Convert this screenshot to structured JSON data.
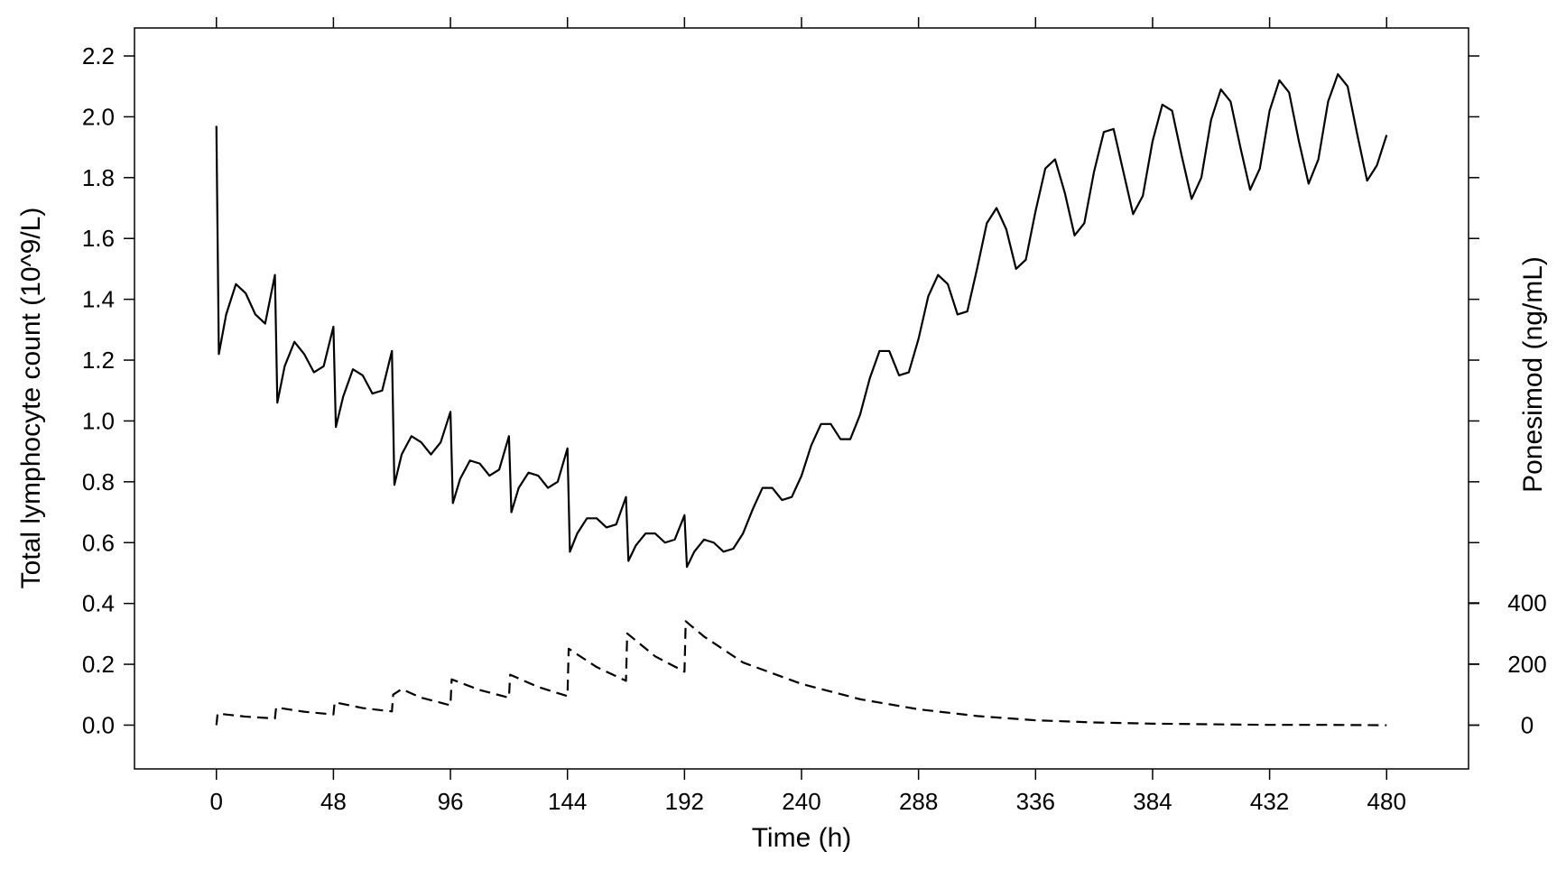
{
  "chart_data": {
    "type": "line",
    "xlabel": "Time (h)",
    "ylabel": "Total lymphocyte count (10^9/L)",
    "y2label": "Ponesimod (ng/mL)",
    "xlim": [
      -33.6,
      513.6
    ],
    "xticks": [
      0,
      48,
      96,
      144,
      192,
      240,
      288,
      336,
      384,
      432,
      480
    ],
    "ylim": [
      -0.144,
      2.292
    ],
    "yticks": [
      {
        "value": 0,
        "label": "0.0"
      },
      0.2,
      0.4,
      0.6,
      0.8,
      {
        "value": 1,
        "label": "1.0"
      },
      1.2,
      1.4,
      1.6,
      1.8,
      {
        "value": 2,
        "label": "2.0"
      },
      2.2
    ],
    "y2lim": [
      -143,
      2280
    ],
    "y2ticks": [
      0,
      200,
      400
    ],
    "series": [
      {
        "color": "#000000",
        "line_style": "solid",
        "x": [
          0,
          1,
          4,
          8,
          12,
          16,
          20,
          24,
          25,
          28,
          32,
          36,
          40,
          44,
          48,
          49,
          52,
          56,
          60,
          64,
          68,
          72,
          73,
          76,
          80,
          84,
          88,
          92,
          96,
          97,
          100,
          104,
          108,
          112,
          116,
          120,
          121,
          124,
          128,
          132,
          136,
          140,
          144,
          145,
          148,
          152,
          156,
          160,
          164,
          168,
          169,
          172,
          176,
          180,
          184,
          188,
          192,
          193,
          196,
          200,
          204,
          208,
          212,
          216,
          220,
          224,
          228,
          232,
          236,
          240,
          244,
          248,
          252,
          256,
          260,
          264,
          268,
          272,
          276,
          280,
          284,
          288,
          292,
          296,
          300,
          304,
          308,
          312,
          316,
          320,
          324,
          328,
          332,
          336,
          340,
          344,
          348,
          352,
          356,
          360,
          364,
          368,
          372,
          376,
          380,
          384,
          388,
          392,
          396,
          400,
          404,
          408,
          412,
          416,
          420,
          424,
          428,
          432,
          436,
          440,
          444,
          448,
          452,
          456,
          460,
          464,
          468,
          472,
          476,
          480
        ],
        "values": [
          1.97,
          1.22,
          1.35,
          1.45,
          1.42,
          1.35,
          1.32,
          1.48,
          1.06,
          1.18,
          1.26,
          1.22,
          1.16,
          1.18,
          1.31,
          0.98,
          1.08,
          1.17,
          1.15,
          1.09,
          1.1,
          1.23,
          0.79,
          0.89,
          0.95,
          0.93,
          0.89,
          0.93,
          1.03,
          0.73,
          0.81,
          0.87,
          0.86,
          0.82,
          0.84,
          0.95,
          0.7,
          0.78,
          0.83,
          0.82,
          0.78,
          0.8,
          0.91,
          0.57,
          0.63,
          0.68,
          0.68,
          0.65,
          0.66,
          0.75,
          0.54,
          0.59,
          0.63,
          0.63,
          0.6,
          0.61,
          0.69,
          0.52,
          0.57,
          0.61,
          0.6,
          0.57,
          0.58,
          0.63,
          0.71,
          0.78,
          0.78,
          0.74,
          0.75,
          0.82,
          0.92,
          0.99,
          0.99,
          0.94,
          0.94,
          1.02,
          1.14,
          1.23,
          1.23,
          1.15,
          1.16,
          1.27,
          1.41,
          1.48,
          1.45,
          1.35,
          1.36,
          1.5,
          1.65,
          1.7,
          1.63,
          1.5,
          1.53,
          1.69,
          1.83,
          1.86,
          1.75,
          1.61,
          1.65,
          1.82,
          1.95,
          1.96,
          1.82,
          1.68,
          1.74,
          1.92,
          2.04,
          2.02,
          1.87,
          1.73,
          1.8,
          1.99,
          2.09,
          2.05,
          1.9,
          1.76,
          1.83,
          2.02,
          2.12,
          2.08,
          1.92,
          1.78,
          1.86,
          2.05,
          2.14,
          2.1,
          1.94,
          1.79,
          1.84,
          1.94
        ]
      },
      {
        "color": "#000000",
        "line_style": "dashed",
        "axis": "y2",
        "x": [
          0,
          0.5,
          12,
          24,
          24.5,
          36,
          48,
          48.5,
          60,
          72,
          72.5,
          76,
          84,
          96,
          96.5,
          108,
          120,
          120.5,
          132,
          144,
          144.5,
          156,
          168,
          168.5,
          180,
          192,
          192.5,
          200,
          216,
          240,
          264,
          288,
          312,
          336,
          360,
          384,
          408,
          432,
          456,
          480
        ],
        "values": [
          0,
          38,
          28,
          22,
          58,
          44,
          35,
          75,
          56,
          45,
          100,
          118,
          90,
          65,
          150,
          115,
          90,
          165,
          125,
          95,
          250,
          190,
          145,
          300,
          225,
          175,
          340,
          290,
          205,
          135,
          85,
          52,
          30,
          16,
          9,
          5,
          3,
          1,
          1,
          0
        ]
      }
    ]
  }
}
